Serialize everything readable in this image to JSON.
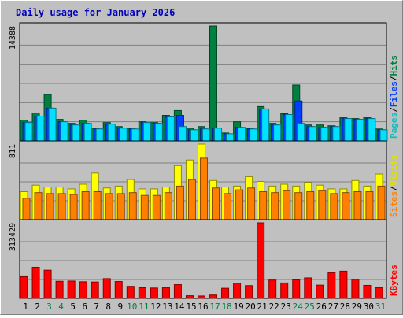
{
  "chart_data": {
    "type": "bar",
    "title": "Daily usage for January 2026",
    "categories": [
      "1",
      "2",
      "3",
      "4",
      "5",
      "6",
      "7",
      "8",
      "9",
      "10",
      "11",
      "12",
      "13",
      "14",
      "15",
      "16",
      "17",
      "18",
      "19",
      "20",
      "21",
      "22",
      "23",
      "24",
      "25",
      "26",
      "27",
      "28",
      "29",
      "30",
      "31"
    ],
    "weekend_days": [
      "3",
      "4",
      "10",
      "11",
      "17",
      "18",
      "24",
      "25",
      "31"
    ],
    "panels": [
      {
        "name": "hits-files-pages",
        "max_label": "14388",
        "ylim": [
          0,
          14388
        ],
        "series": [
          {
            "name": "Hits",
            "color": "#008040",
            "values": [
              2600,
              3500,
              5800,
              2700,
              2200,
              2600,
              1600,
              2300,
              1800,
              1600,
              2400,
              2300,
              3200,
              3800,
              1600,
              1800,
              14388,
              1000,
              2400,
              1600,
              4300,
              2200,
              3400,
              7000,
              2000,
              2000,
              1900,
              2900,
              2800,
              2900,
              1500
            ]
          },
          {
            "name": "Files",
            "color": "#0040ff",
            "values": [
              2300,
              3100,
              4100,
              2400,
              2000,
              2200,
              1500,
              2100,
              1600,
              1500,
              2300,
              2200,
              3000,
              3200,
              1400,
              1500,
              1600,
              900,
              1700,
              1500,
              4000,
              2000,
              3300,
              5000,
              1800,
              1700,
              1800,
              2800,
              2700,
              2800,
              1400
            ]
          },
          {
            "name": "Pages",
            "color": "#00e0ff",
            "values": [
              2300,
              3100,
              4100,
              2400,
              2000,
              2200,
              1500,
              2100,
              1600,
              1500,
              2300,
              2200,
              3000,
              1800,
              1400,
              1500,
              1600,
              900,
              1700,
              1500,
              4000,
              2000,
              3300,
              2200,
              1800,
              1700,
              1800,
              2800,
              2700,
              2800,
              1400
            ]
          }
        ]
      },
      {
        "name": "visits-sites",
        "max_label": "811",
        "ylim": [
          0,
          811
        ],
        "series": [
          {
            "name": "Visits",
            "color": "#ffff00",
            "values": [
              300,
              370,
              350,
              350,
              330,
              380,
              500,
              340,
              360,
              430,
              330,
              330,
              350,
              580,
              640,
              811,
              420,
              350,
              360,
              460,
              410,
              360,
              380,
              360,
              400,
              370,
              330,
              330,
              420,
              360,
              490
            ]
          },
          {
            "name": "Sites",
            "color": "#ff8000",
            "values": [
              230,
              290,
              280,
              280,
              270,
              300,
              300,
              280,
              280,
              290,
              260,
              260,
              290,
              360,
              430,
              660,
              340,
              280,
              320,
              340,
              300,
              290,
              310,
              290,
              300,
              310,
              280,
              290,
              300,
              300,
              360
            ]
          }
        ]
      },
      {
        "name": "kbytes",
        "max_label": "313429",
        "ylim": [
          0,
          313429
        ],
        "series": [
          {
            "name": "KBytes",
            "color": "#ff0000",
            "values": [
              90000,
              129000,
              117000,
              71000,
              72000,
              69000,
              68000,
              82000,
              70000,
              50000,
              44000,
              43000,
              45000,
              57000,
              11000,
              10000,
              14000,
              42000,
              63000,
              53000,
              313429,
              76000,
              64000,
              77000,
              85000,
              55000,
              106000,
              113000,
              79000,
              54000,
              44000
            ]
          }
        ]
      }
    ],
    "legend": [
      {
        "panel": 0,
        "items": [
          {
            "text": "Pages",
            "color": "#00c0c0"
          },
          {
            "text": "/",
            "color": "#000000"
          },
          {
            "text": "Files",
            "color": "#0040ff"
          },
          {
            "text": "/",
            "color": "#000000"
          },
          {
            "text": "Hits",
            "color": "#008040"
          }
        ]
      },
      {
        "panel": 1,
        "items": [
          {
            "text": "Sites",
            "color": "#ff8000"
          },
          {
            "text": "/",
            "color": "#000000"
          },
          {
            "text": "Visits",
            "color": "#e0e000"
          }
        ]
      },
      {
        "panel": 2,
        "items": [
          {
            "text": "KBytes",
            "color": "#ff0000"
          }
        ]
      }
    ],
    "colors": {
      "background": "#c0c0c0",
      "title": "#0000c0",
      "weekday_label": "#000000",
      "weekend_label": "#008040",
      "grid": "#808080"
    }
  }
}
